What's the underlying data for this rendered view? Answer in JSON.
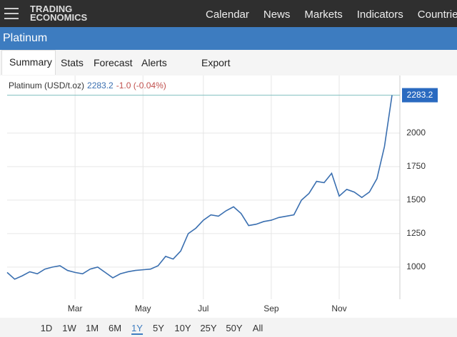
{
  "header": {
    "logo": [
      "TRADING",
      "ECONOMICS"
    ],
    "nav": [
      "Calendar",
      "News",
      "Markets",
      "Indicators",
      "Countries"
    ]
  },
  "title": "Platinum",
  "tabs": [
    "Summary",
    "Stats",
    "Forecast",
    "Alerts",
    "Export"
  ],
  "chart_data": {
    "type": "line",
    "change": "-1.0 (-0.04%)",
    "categories": [
      null,
      null,
      null,
      null,
      null,
      null,
      null,
      null,
      null,
      "Mar",
      null,
      null,
      null,
      null,
      null,
      null,
      null,
      null,
      "May",
      null,
      null,
      null,
      null,
      null,
      null,
      null,
      "Jul",
      null,
      null,
      null,
      null,
      null,
      null,
      null,
      null,
      "Sep",
      null,
      null,
      null,
      null,
      null,
      null,
      null,
      null,
      "Nov",
      null,
      null,
      null,
      null,
      null,
      null,
      null
    ],
    "series": [
      {
        "name": "Platinum (USD/t.oz)",
        "color": "#3a6fb0",
        "values": [
          960,
          910,
          935,
          965,
          950,
          985,
          1000,
          1010,
          975,
          960,
          950,
          985,
          1000,
          960,
          920,
          950,
          965,
          975,
          980,
          985,
          1010,
          1080,
          1060,
          1120,
          1250,
          1290,
          1350,
          1390,
          1380,
          1420,
          1450,
          1400,
          1310,
          1320,
          1340,
          1350,
          1370,
          1380,
          1390,
          1500,
          1550,
          1640,
          1630,
          1700,
          1530,
          1580,
          1560,
          1520,
          1560,
          1660,
          1900,
          2283.2
        ]
      }
    ],
    "ylim": [
      760,
      2430
    ],
    "yticks": [
      1000,
      1250,
      1500,
      1750,
      2000
    ],
    "grid": true
  },
  "ranges": [
    "1D",
    "1W",
    "1M",
    "6M",
    "1Y",
    "5Y",
    "10Y",
    "25Y",
    "50Y",
    "All"
  ],
  "selected_range": "1Y"
}
